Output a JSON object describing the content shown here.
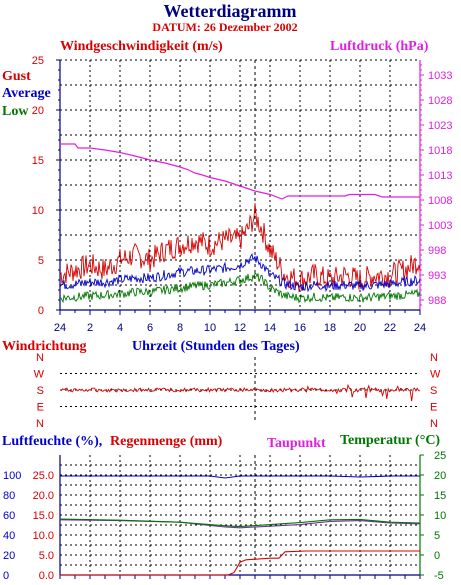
{
  "title": "Wetterdiagramm",
  "subtitle": "DATUM: 26 Dezember 2002",
  "colors": {
    "navy": "#000080",
    "red": "#d80000",
    "magenta": "#e020e0",
    "blue": "#0000cc",
    "green": "#007700",
    "grid": "#000000",
    "purple": "#7030a0"
  },
  "wind_panel": {
    "left_title": "Windgeschwindigkeit (m/s)",
    "right_title": "Luftdruck (hPa)",
    "legend": {
      "gust": "Gust",
      "average": "Average",
      "low": "Low"
    },
    "y_left_ticks": [
      "0",
      "5",
      "10",
      "15",
      "20",
      "25"
    ],
    "y_right_ticks": [
      "988",
      "993",
      "998",
      "1003",
      "1008",
      "1013",
      "1018",
      "1023",
      "1028",
      "1033"
    ]
  },
  "x_axis": {
    "ticks": [
      "24",
      "2",
      "4",
      "6",
      "8",
      "10",
      "12",
      "14",
      "16",
      "18",
      "20",
      "22",
      "24"
    ],
    "label": "Uhrzeit (Stunden des Tages)"
  },
  "direction_panel": {
    "title": "Windrichtung",
    "ticks": [
      "N",
      "W",
      "S",
      "E",
      "N"
    ]
  },
  "bottom_panel": {
    "title_humidity": "Luftfeuchte (%),",
    "title_rain": "Regenmenge (mm)",
    "title_dewpoint": "Taupunkt",
    "title_temp": "Temperatur (",
    "temp_unit": "°C)",
    "humidity_ticks": [
      "0",
      "20",
      "40",
      "60",
      "80",
      "100"
    ],
    "rain_ticks": [
      "0.0",
      "5.0",
      "10.0",
      "15.0",
      "20.0",
      "25.0"
    ],
    "temp_ticks": [
      "-5",
      "0",
      "5",
      "10",
      "15",
      "20",
      "25"
    ]
  },
  "chart_data": [
    {
      "type": "line",
      "x_unit": "hour of day (0 = 24 of previous day)",
      "xlim": [
        0,
        24
      ],
      "series": [
        {
          "name": "Gust",
          "axis": "left",
          "ylim": [
            0,
            25
          ],
          "x": [
            0,
            1,
            2,
            3,
            4,
            5,
            6,
            7,
            8,
            9,
            10,
            11,
            12,
            12.5,
            13,
            13.5,
            14,
            15,
            16,
            17,
            18,
            19,
            20,
            21,
            22,
            23,
            24
          ],
          "values": [
            3.5,
            4,
            4.5,
            4,
            5,
            5.5,
            5,
            6,
            6.5,
            7,
            6.5,
            7,
            7,
            8,
            9.5,
            8,
            6,
            3.5,
            3,
            3.5,
            3,
            3.5,
            3,
            3.5,
            3.5,
            4,
            5
          ]
        },
        {
          "name": "Average",
          "axis": "left",
          "ylim": [
            0,
            25
          ],
          "x": [
            0,
            1,
            2,
            3,
            4,
            5,
            6,
            7,
            8,
            9,
            10,
            11,
            12,
            12.5,
            13,
            13.5,
            14,
            15,
            16,
            17,
            18,
            19,
            20,
            21,
            22,
            23,
            24
          ],
          "values": [
            2.5,
            2.6,
            2.8,
            2.8,
            3,
            3.2,
            3.2,
            3.5,
            3.8,
            3.9,
            4,
            4.2,
            4.5,
            5,
            5.2,
            4.5,
            3.5,
            2.6,
            2.3,
            2.5,
            2.4,
            2.5,
            2.4,
            2.5,
            2.6,
            2.8,
            3
          ]
        },
        {
          "name": "Low",
          "axis": "left",
          "ylim": [
            0,
            25
          ],
          "x": [
            0,
            1,
            2,
            3,
            4,
            5,
            6,
            7,
            8,
            9,
            10,
            11,
            12,
            12.5,
            13,
            13.5,
            14,
            15,
            16,
            17,
            18,
            19,
            20,
            21,
            22,
            23,
            24
          ],
          "values": [
            1.2,
            1.3,
            1.4,
            1.5,
            1.6,
            1.8,
            1.8,
            2,
            2.2,
            2.4,
            2.5,
            2.7,
            3,
            3.2,
            3.4,
            3,
            2.2,
            1.4,
            1.2,
            1.3,
            1.2,
            1.3,
            1.2,
            1.3,
            1.4,
            1.5,
            1.6
          ]
        },
        {
          "name": "Luftdruck",
          "axis": "right",
          "ylim": [
            986,
            1036
          ],
          "x": [
            0,
            1,
            1.2,
            2,
            3,
            4,
            5,
            6,
            7,
            8,
            8.5,
            9,
            9.5,
            10,
            11,
            12,
            13,
            14,
            14.8,
            15.2,
            16,
            18,
            19,
            19.3,
            20,
            21,
            21.5,
            22,
            23,
            24
          ],
          "values": [
            1019.2,
            1019.2,
            1018.4,
            1018.4,
            1018,
            1017.5,
            1016.8,
            1016,
            1015.4,
            1014.6,
            1014.1,
            1013.4,
            1013,
            1012.5,
            1011.8,
            1010.8,
            1009.8,
            1009.1,
            1008.2,
            1008.8,
            1008.8,
            1008.8,
            1008.8,
            1009.1,
            1009.1,
            1009.1,
            1008.6,
            1008.6,
            1008.6,
            1008.6
          ]
        }
      ]
    },
    {
      "type": "line",
      "x_unit": "hour of day",
      "xlim": [
        0,
        24
      ],
      "y_categories": [
        "N",
        "W",
        "S",
        "E",
        "N"
      ],
      "series": [
        {
          "name": "Windrichtung",
          "x": [
            0,
            2,
            4,
            6,
            8,
            10,
            12,
            13,
            14,
            15,
            16,
            17,
            18,
            19,
            20,
            22,
            24
          ],
          "values": [
            "S",
            "S",
            "S",
            "S",
            "S",
            "S",
            "S",
            "S",
            "S",
            "S",
            "S",
            "S",
            "S",
            "S",
            "S",
            "S",
            "S"
          ]
        }
      ]
    },
    {
      "type": "line",
      "x_unit": "hour of day",
      "xlim": [
        0,
        24
      ],
      "series": [
        {
          "name": "Luftfeuchte",
          "axis": "humidity",
          "ylim": [
            0,
            100
          ],
          "x": [
            0,
            4,
            8,
            10,
            11,
            12,
            14,
            18,
            20,
            22,
            24
          ],
          "values": [
            99,
            99,
            99,
            99,
            97,
            99,
            99,
            99,
            98,
            99,
            99
          ]
        },
        {
          "name": "Regenmenge",
          "axis": "rain",
          "ylim": [
            0,
            25
          ],
          "x": [
            0,
            11.2,
            11.6,
            12,
            12.4,
            14,
            14.6,
            15,
            16.4,
            17,
            20,
            24
          ],
          "values": [
            0,
            0,
            0.6,
            3.2,
            3.8,
            4.2,
            4.2,
            5.8,
            6,
            6,
            6,
            6
          ]
        },
        {
          "name": "Taupunkt",
          "axis": "temp",
          "ylim": [
            -5,
            25
          ],
          "x": [
            0,
            4,
            8,
            9,
            10,
            11,
            12,
            14,
            16,
            18,
            20,
            22,
            24
          ],
          "values": [
            8.8,
            8.6,
            8.2,
            7.8,
            7.4,
            7,
            6.8,
            7.2,
            7.6,
            8.4,
            8.6,
            8,
            7.8
          ]
        },
        {
          "name": "Temperatur",
          "axis": "temp",
          "ylim": [
            -5,
            25
          ],
          "x": [
            0,
            4,
            8,
            9,
            10,
            11,
            12,
            14,
            16,
            18,
            20,
            22,
            24
          ],
          "values": [
            9,
            8.7,
            8.2,
            7.9,
            7.6,
            7.3,
            7.1,
            7.6,
            8.1,
            8.8,
            8.9,
            8.2,
            8
          ]
        }
      ]
    }
  ]
}
